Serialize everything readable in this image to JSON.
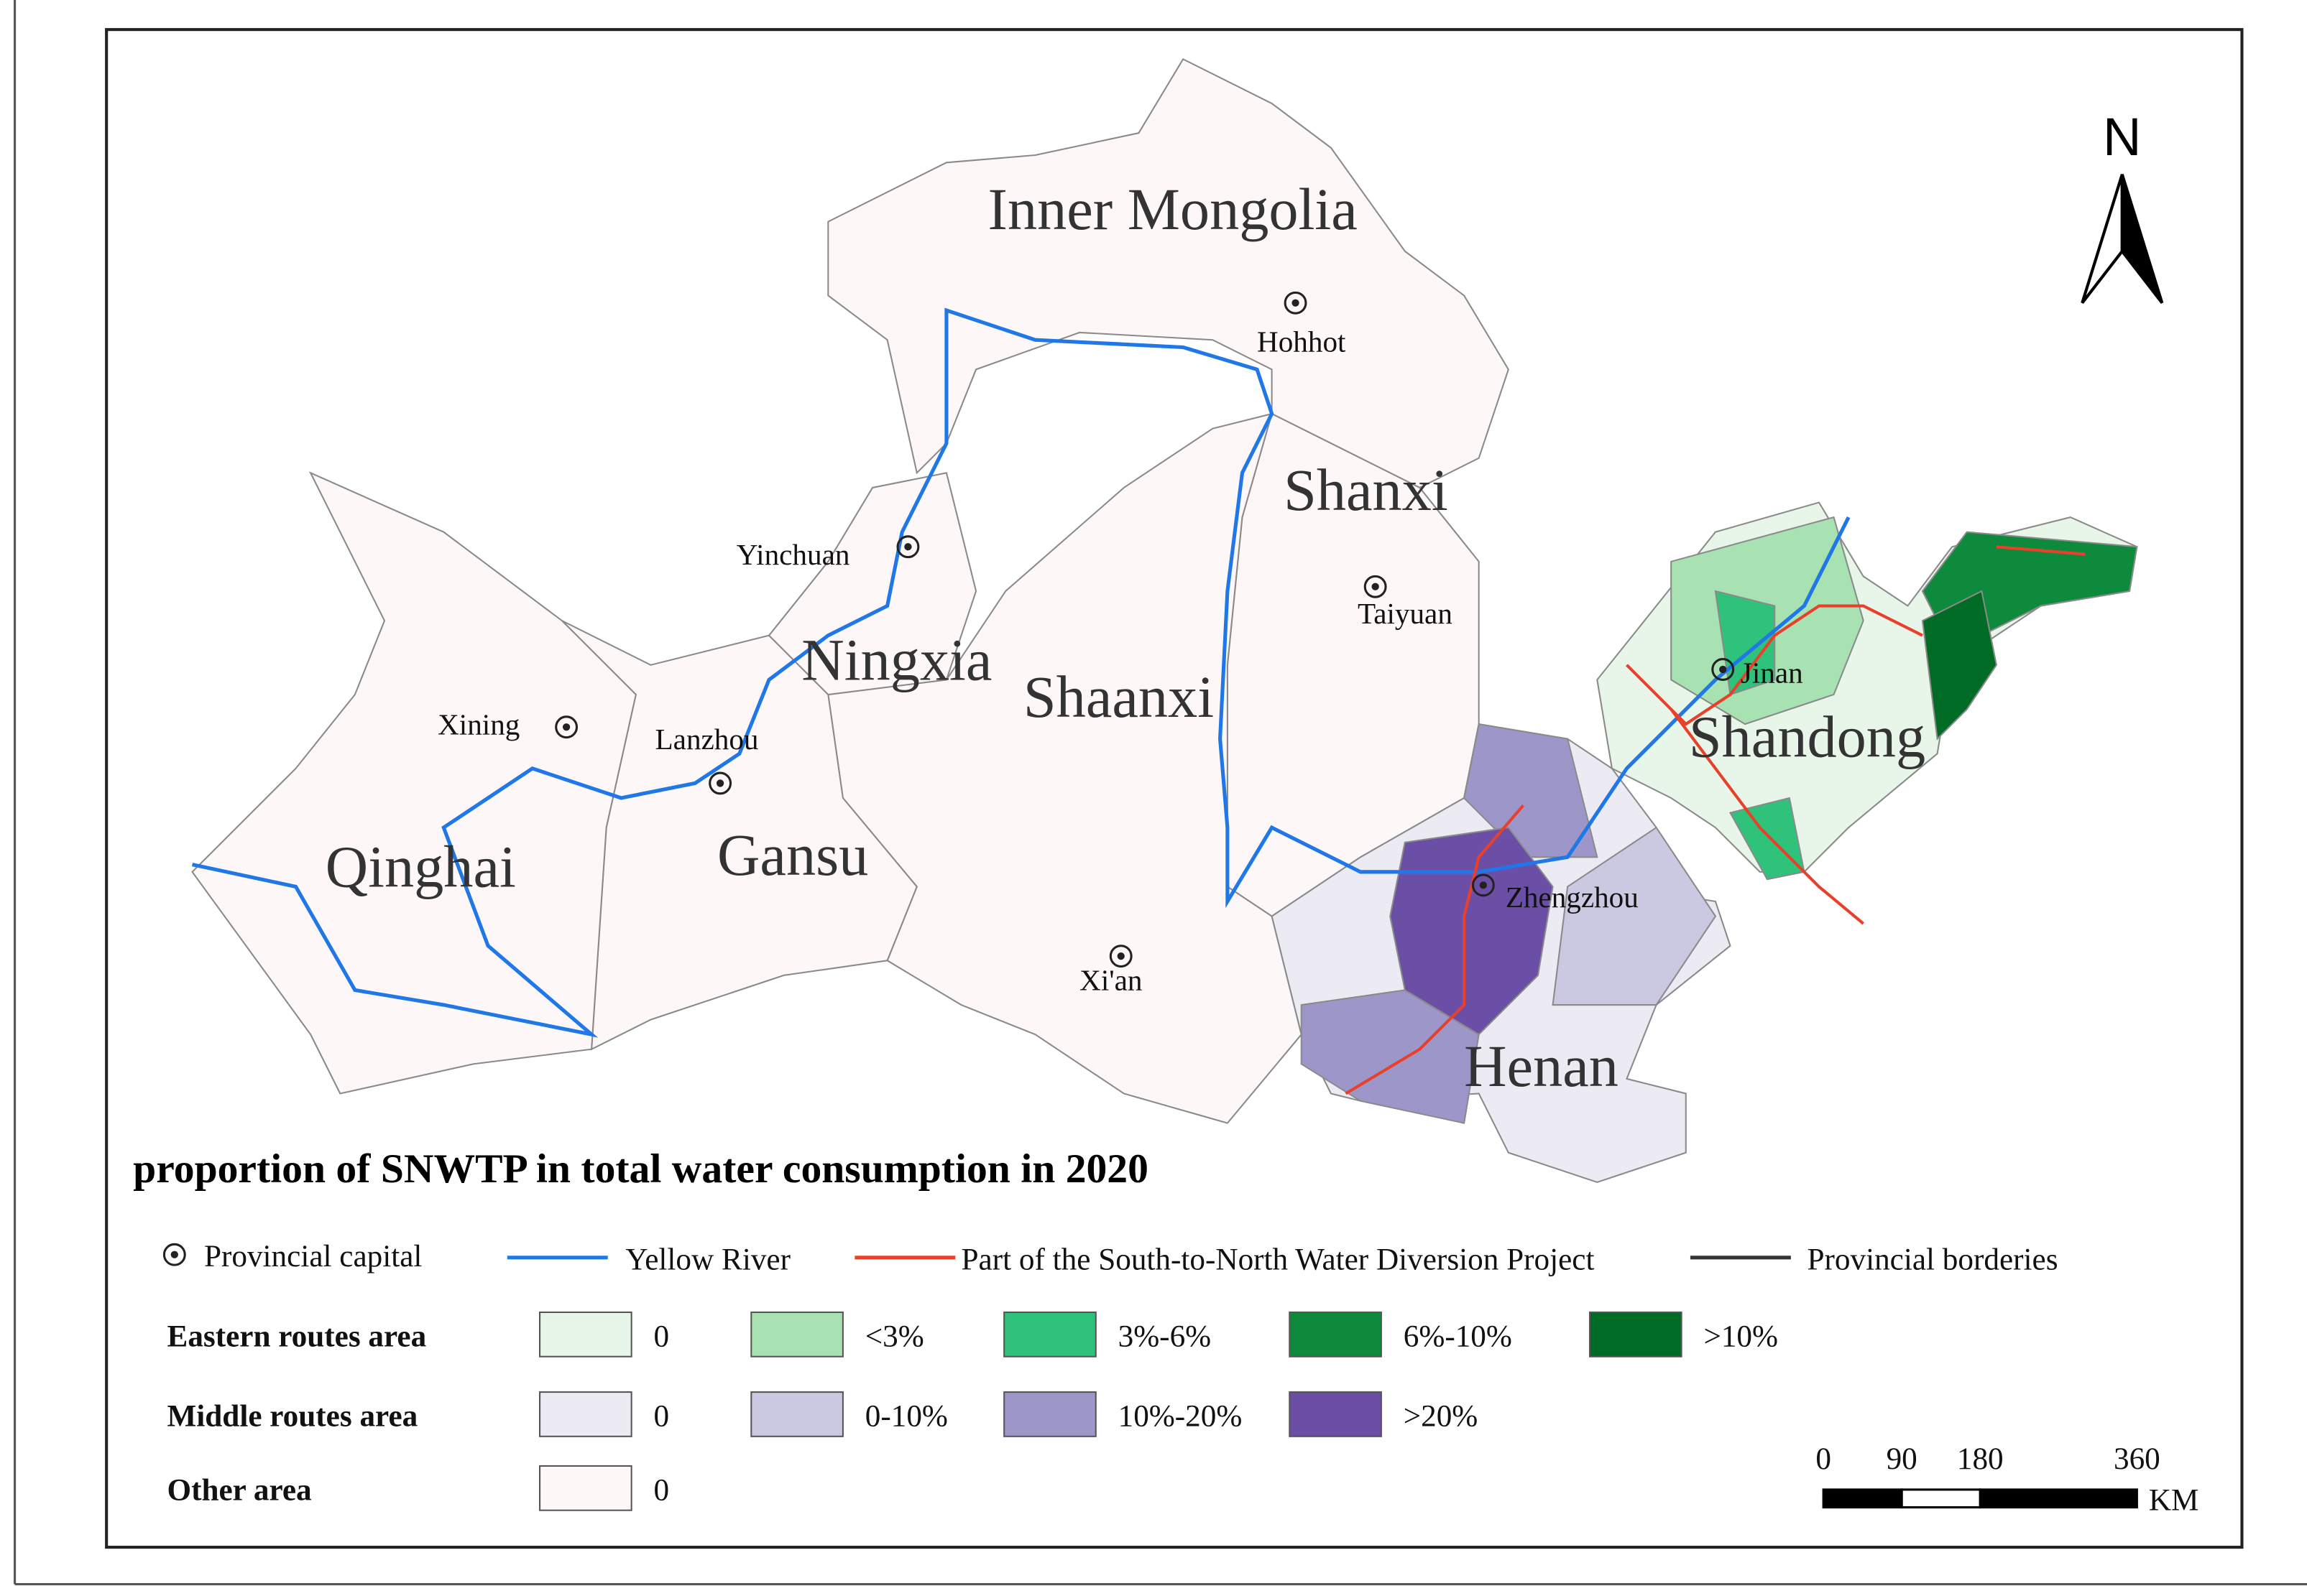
{
  "title": "proportion of SNWTP in total water consumption in 2020",
  "north": "N",
  "provinces": [
    "Inner Mongolia",
    "Shanxi",
    "Ningxia",
    "Shaanxi",
    "Qinghai",
    "Gansu",
    "Shandong",
    "Henan"
  ],
  "capitals": [
    "Hohhot",
    "Yinchuan",
    "Taiyuan",
    "Jinan",
    "Xining",
    "Lanzhou",
    "Zhengzhou",
    "Xi'an"
  ],
  "legend": {
    "symbols": [
      {
        "label": "Provincial capital"
      },
      {
        "label": "Yellow River",
        "color": "#1f77e8"
      },
      {
        "label": "Part of the South-to-North Water Diversion Project",
        "color": "#e8402a"
      },
      {
        "label": "Provincial borderies",
        "color": "#333333"
      }
    ],
    "classes": [
      {
        "label": "Eastern routes area",
        "items": [
          {
            "label": "0",
            "color": "#e8f6ea"
          },
          {
            "label": "<3%",
            "color": "#a8e2b2"
          },
          {
            "label": "3%-6%",
            "color": "#2ec27a"
          },
          {
            "label": "6%-10%",
            "color": "#0e8a3c"
          },
          {
            "label": ">10%",
            "color": "#006b24"
          }
        ]
      },
      {
        "label": "Middle routes area",
        "items": [
          {
            "label": "0",
            "color": "#ecebf3"
          },
          {
            "label": "0-10%",
            "color": "#cbc8e2"
          },
          {
            "label": "10%-20%",
            "color": "#9d97c9"
          },
          {
            "label": ">20%",
            "color": "#6b4ea5"
          }
        ]
      },
      {
        "label": "Other area",
        "items": [
          {
            "label": "0",
            "color": "#fdf8f7"
          }
        ]
      }
    ]
  },
  "scale_bar": {
    "ticks": [
      0,
      90,
      180,
      360
    ],
    "unit": "KM"
  }
}
